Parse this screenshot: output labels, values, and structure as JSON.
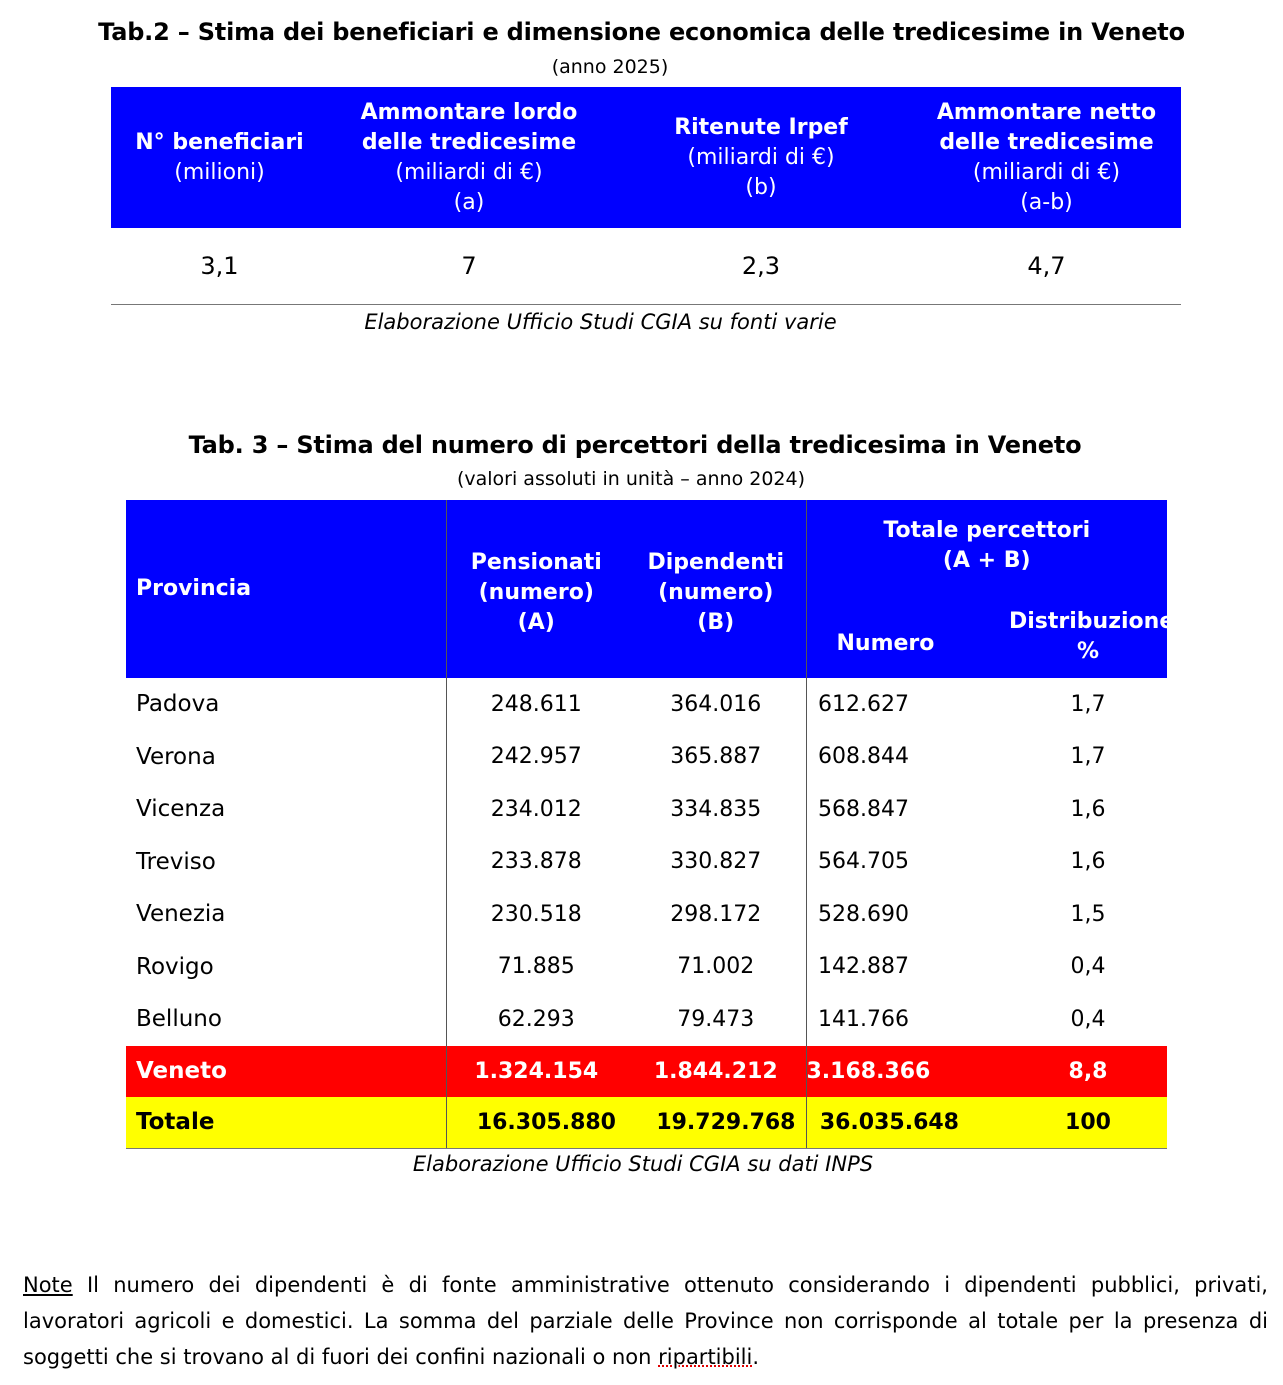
{
  "tab2": {
    "title": "Tab.2 – Stima dei beneficiari e dimensione economica delle tredicesime in Veneto",
    "subtitle": "(anno 2025)",
    "headers": [
      {
        "l1": "N° beneficiari",
        "l2": "",
        "l3": "(milioni)",
        "l4": ""
      },
      {
        "l1": "Ammontare lordo",
        "l2": "delle tredicesime",
        "l3": "(miliardi di €)",
        "l4": "(a)"
      },
      {
        "l1": "Ritenute Irpef",
        "l2": "",
        "l3": "(miliardi di €)",
        "l4": "(b)"
      },
      {
        "l1": "Ammontare netto",
        "l2": "delle tredicesime",
        "l3": "(miliardi di €)",
        "l4": "(a-b)"
      }
    ],
    "values": [
      "3,1",
      "7",
      "2,3",
      "4,7"
    ],
    "source": "Elaborazione Ufficio Studi CGIA su fonti varie"
  },
  "tab3": {
    "title": "Tab. 3 – Stima del numero di percettori della tredicesima in Veneto",
    "subtitle": "(valori assoluti in unità – anno 2024)",
    "headers": {
      "provincia": "Provincia",
      "pensionati": [
        "Pensionati",
        "(numero)",
        "(A)"
      ],
      "dipendenti": [
        "Dipendenti",
        "(numero)",
        "(B)"
      ],
      "totale": [
        "Totale percettori",
        "(A + B)"
      ],
      "numero": "Numero",
      "distribuzione": [
        "Distribuzione",
        "%"
      ]
    },
    "rows": [
      {
        "provincia": "Padova",
        "pensionati": "248.611",
        "dipendenti": "364.016",
        "numero": "612.627",
        "distribuzione": "1,7"
      },
      {
        "provincia": "Verona",
        "pensionati": "242.957",
        "dipendenti": "365.887",
        "numero": "608.844",
        "distribuzione": "1,7"
      },
      {
        "provincia": "Vicenza",
        "pensionati": "234.012",
        "dipendenti": "334.835",
        "numero": "568.847",
        "distribuzione": "1,6"
      },
      {
        "provincia": "Treviso",
        "pensionati": "233.878",
        "dipendenti": "330.827",
        "numero": "564.705",
        "distribuzione": "1,6"
      },
      {
        "provincia": "Venezia",
        "pensionati": "230.518",
        "dipendenti": "298.172",
        "numero": "528.690",
        "distribuzione": "1,5"
      },
      {
        "provincia": "Rovigo",
        "pensionati": "71.885",
        "dipendenti": "71.002",
        "numero": "142.887",
        "distribuzione": "0,4"
      },
      {
        "provincia": "Belluno",
        "pensionati": "62.293",
        "dipendenti": "79.473",
        "numero": "141.766",
        "distribuzione": "0,4"
      }
    ],
    "veneto": {
      "provincia": "Veneto",
      "pensionati": "1.324.154",
      "dipendenti": "1.844.212",
      "numero": "3.168.366",
      "distribuzione": "8,8"
    },
    "totale": {
      "provincia": "Totale",
      "pensionati": "16.305.880",
      "dipendenti": "19.729.768",
      "numero": "36.035.648",
      "distribuzione": "100"
    },
    "source": "Elaborazione Ufficio Studi CGIA su dati INPS"
  },
  "note": {
    "label": "Note",
    "text": " Il numero dei dipendenti è di fonte amministrative ottenuto considerando i dipendenti pubblici, privati, lavoratori agricoli e domestici. La somma del parziale delle Province non corrisponde al totale per la presenza di soggetti che si trovano al di fuori dei confini nazionali o non ",
    "flagged_word": "ripartibili",
    "end": "."
  },
  "colors": {
    "header_blue": "#0000ff",
    "veneto_red": "#ff0000",
    "totale_yellow": "#ffff00"
  }
}
